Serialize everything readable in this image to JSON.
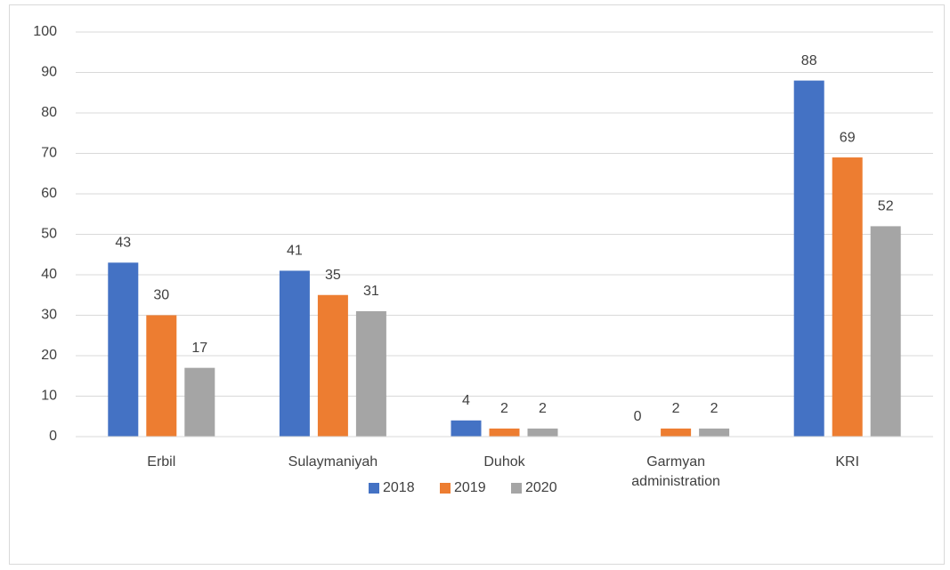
{
  "chart_data": {
    "type": "bar",
    "categories": [
      "Erbil",
      "Sulaymaniyah",
      "Duhok",
      "Garmyan administration",
      "KRI"
    ],
    "series": [
      {
        "name": "2018",
        "color": "#4472c4",
        "values": [
          43,
          41,
          4,
          0,
          88
        ]
      },
      {
        "name": "2019",
        "color": "#ed7d31",
        "values": [
          30,
          35,
          2,
          2,
          69
        ]
      },
      {
        "name": "2020",
        "color": "#a5a5a5",
        "values": [
          17,
          31,
          2,
          2,
          52
        ]
      }
    ],
    "ylim": [
      0,
      100
    ],
    "yticks": [
      0,
      10,
      20,
      30,
      40,
      50,
      60,
      70,
      80,
      90,
      100
    ],
    "grid": true,
    "legend": "bottom"
  }
}
